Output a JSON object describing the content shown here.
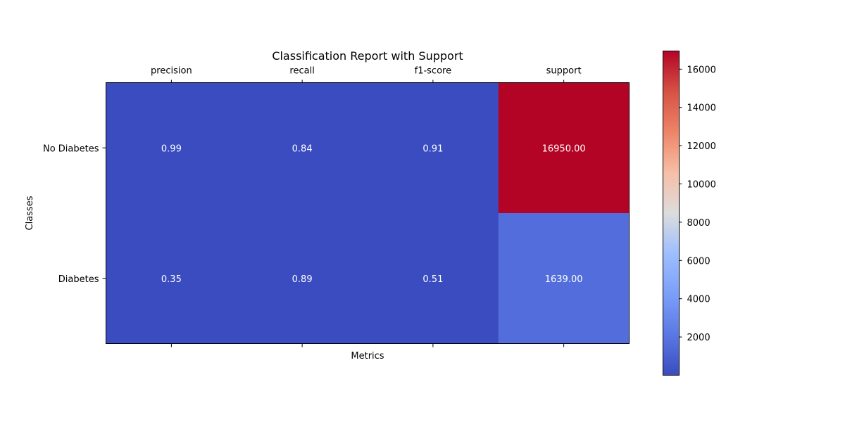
{
  "chart_data": {
    "type": "heatmap",
    "title": "Classification Report with Support",
    "xlabel": "Metrics",
    "ylabel": "Classes",
    "x_categories": [
      "precision",
      "recall",
      "f1-score",
      "support"
    ],
    "y_categories": [
      "No Diabetes",
      "Diabetes"
    ],
    "values": [
      [
        0.99,
        0.84,
        0.91,
        16950.0
      ],
      [
        0.35,
        0.89,
        0.51,
        1639.0
      ]
    ],
    "cell_labels": [
      [
        "0.99",
        "0.84",
        "0.91",
        "16950.00"
      ],
      [
        "0.35",
        "0.89",
        "0.51",
        "1639.00"
      ]
    ],
    "colormap": "coolwarm",
    "colorbar": {
      "range": [
        0,
        16950
      ],
      "ticks": [
        2000,
        4000,
        6000,
        8000,
        10000,
        12000,
        14000,
        16000
      ],
      "tick_labels": [
        "2000",
        "4000",
        "6000",
        "8000",
        "10000",
        "12000",
        "14000",
        "16000"
      ]
    },
    "cell_text_color": "#ffffff",
    "x_ticks_position": "top",
    "grid": false,
    "legend": "none"
  }
}
